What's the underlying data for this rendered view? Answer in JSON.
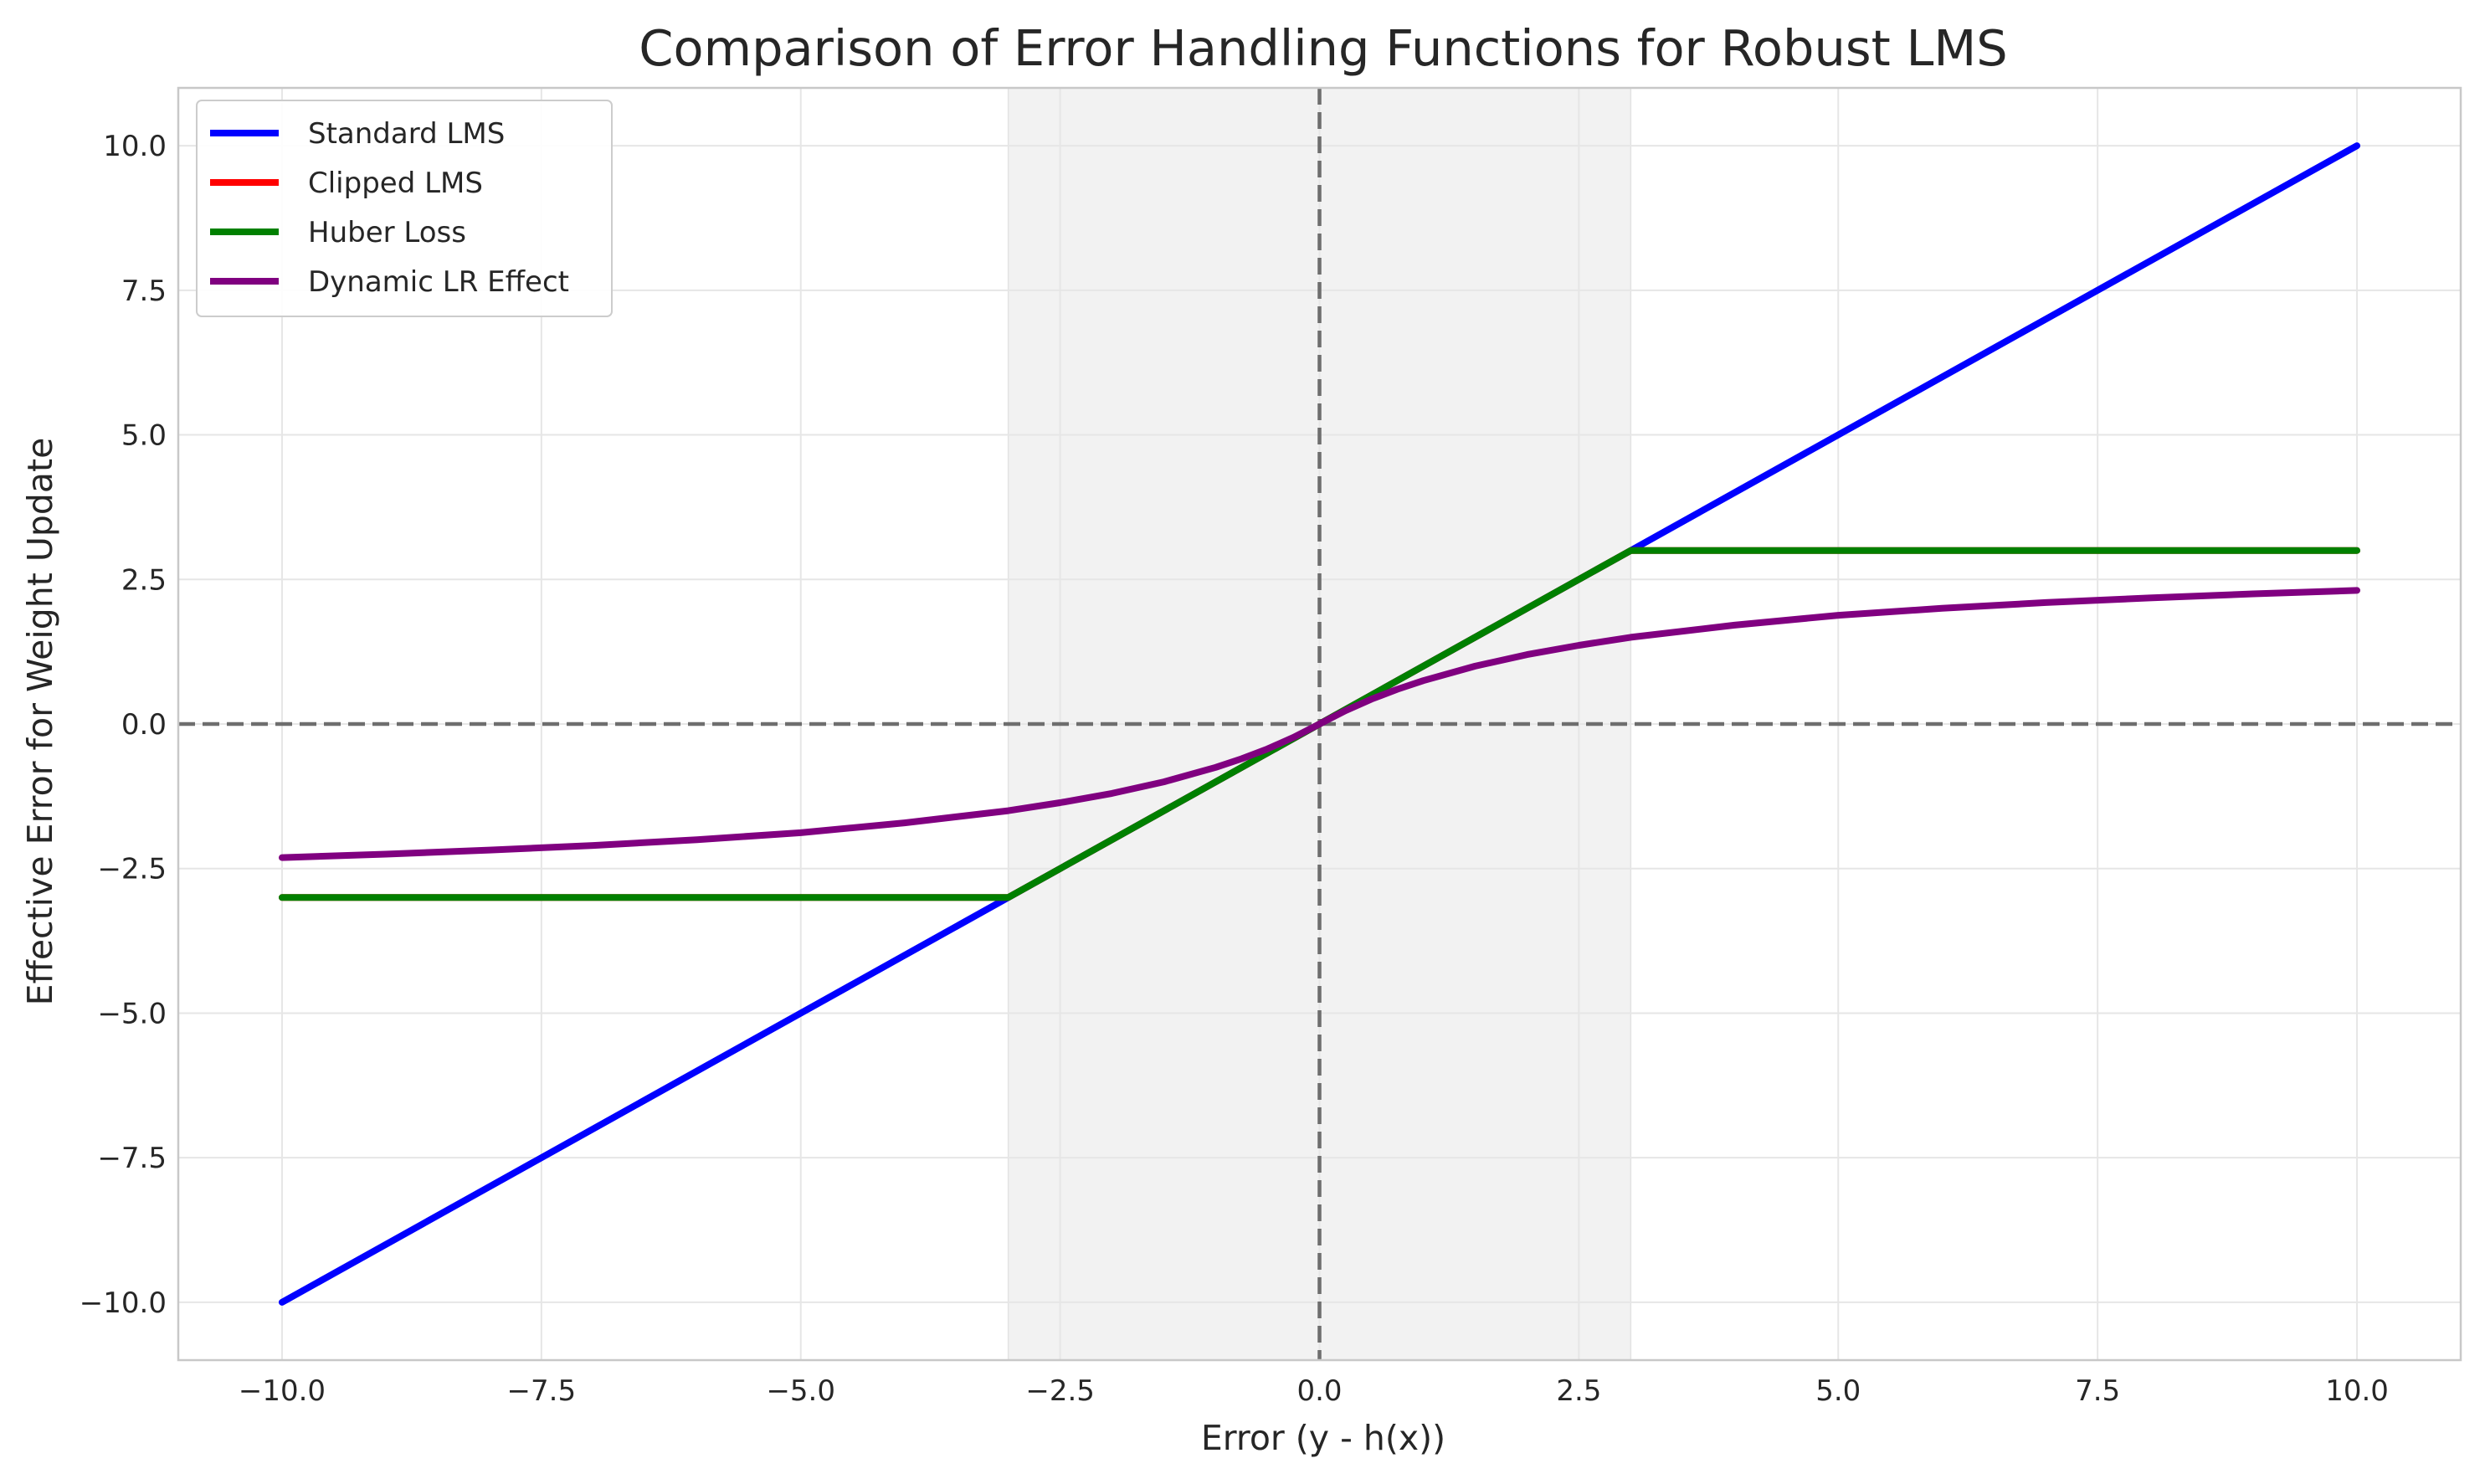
{
  "chart_data": {
    "type": "line",
    "title": "Comparison of Error Handling Functions for Robust LMS",
    "xlabel": "Error (y - h(x))",
    "ylabel": "Effective Error for Weight Update",
    "xlim": [
      -11,
      11
    ],
    "ylim": [
      -11,
      11
    ],
    "xticks": [
      -10.0,
      -7.5,
      -5.0,
      -2.5,
      0.0,
      2.5,
      5.0,
      7.5,
      10.0
    ],
    "xtick_labels": [
      "−10.0",
      "−7.5",
      "−5.0",
      "−2.5",
      "0.0",
      "2.5",
      "5.0",
      "7.5",
      "10.0"
    ],
    "yticks": [
      -10.0,
      -7.5,
      -5.0,
      -2.5,
      0.0,
      2.5,
      5.0,
      7.5,
      10.0
    ],
    "ytick_labels": [
      "−10.0",
      "−7.5",
      "−5.0",
      "−2.5",
      "0.0",
      "2.5",
      "5.0",
      "7.5",
      "10.0"
    ],
    "grid": true,
    "legend_position": "top-left",
    "shaded_region": {
      "x": [
        -3,
        3
      ],
      "color": "#f2f2f2"
    },
    "reference_lines": {
      "x": 0,
      "y": 0,
      "color": "#6e6e6e",
      "style": "dashed"
    },
    "series": [
      {
        "name": "Standard LMS",
        "color": "#0000ff",
        "x": [
          -10,
          10
        ],
        "y": [
          -10,
          10
        ]
      },
      {
        "name": "Clipped LMS",
        "color": "#ff0000",
        "x": [
          -10,
          -3,
          3,
          10
        ],
        "y": [
          -3,
          -3,
          3,
          3
        ]
      },
      {
        "name": "Huber Loss",
        "color": "#008000",
        "x": [
          -10,
          -3,
          3,
          10
        ],
        "y": [
          -3,
          -3,
          3,
          3
        ]
      },
      {
        "name": "Dynamic LR Effect",
        "color": "#800080",
        "x": [
          -10,
          -9,
          -8,
          -7,
          -6,
          -5,
          -4,
          -3,
          -2.5,
          -2,
          -1.5,
          -1,
          -0.75,
          -0.5,
          -0.25,
          0,
          0.25,
          0.5,
          0.75,
          1,
          1.5,
          2,
          2.5,
          3,
          4,
          5,
          6,
          7,
          8,
          9,
          10
        ],
        "y": [
          -2.31,
          -2.25,
          -2.18,
          -2.1,
          -2.0,
          -1.88,
          -1.71,
          -1.5,
          -1.36,
          -1.2,
          -1.0,
          -0.75,
          -0.6,
          -0.43,
          -0.23,
          0,
          0.23,
          0.43,
          0.6,
          0.75,
          1.0,
          1.2,
          1.36,
          1.5,
          1.71,
          1.88,
          2.0,
          2.1,
          2.18,
          2.25,
          2.31
        ]
      }
    ]
  }
}
